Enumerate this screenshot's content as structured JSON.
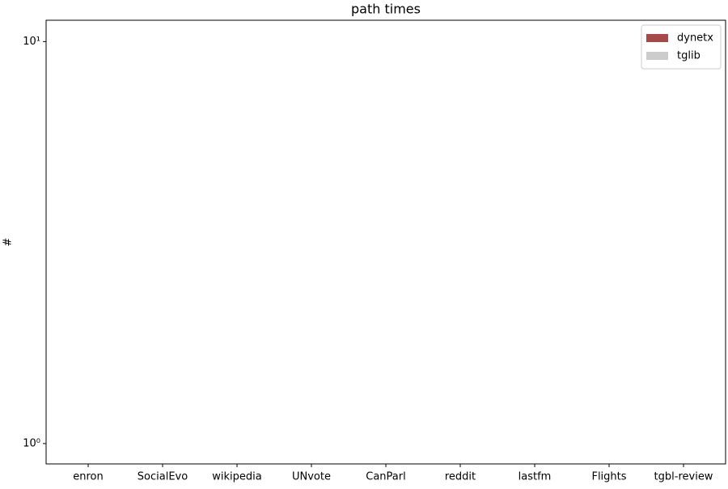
{
  "chart_data": {
    "type": "bar",
    "title": "path times",
    "ylabel": "#",
    "categories": [
      "enron",
      "SocialEvo",
      "wikipedia",
      "UNvote",
      "CanParl",
      "reddit",
      "lastfm",
      "Flights",
      "tgbl-review"
    ],
    "series": [
      {
        "name": "dynetx",
        "color": "#a34a4a",
        "values": [
          null,
          null,
          null,
          null,
          null,
          null,
          null,
          null,
          null
        ]
      },
      {
        "name": "tglib",
        "color": "#cccccc",
        "values": [
          null,
          null,
          null,
          null,
          null,
          null,
          null,
          null,
          null
        ]
      }
    ],
    "ylim": [
      0.89,
      11.3
    ],
    "yscale": "log",
    "yticks": [
      {
        "value": 1,
        "label": "10⁰"
      },
      {
        "value": 10,
        "label": "10¹"
      }
    ],
    "legend": "upper right"
  }
}
